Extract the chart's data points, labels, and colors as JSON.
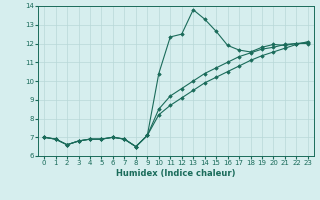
{
  "xlabel": "Humidex (Indice chaleur)",
  "ylabel": "",
  "x": [
    0,
    1,
    2,
    3,
    4,
    5,
    6,
    7,
    8,
    9,
    10,
    11,
    12,
    13,
    14,
    15,
    16,
    17,
    18,
    19,
    20,
    21,
    22,
    23
  ],
  "line1": [
    7.0,
    6.9,
    6.6,
    6.8,
    6.9,
    6.9,
    7.0,
    6.9,
    6.5,
    7.1,
    10.4,
    12.35,
    12.5,
    13.8,
    13.3,
    12.65,
    11.9,
    11.65,
    11.55,
    11.8,
    11.95,
    11.9,
    12.0,
    12.0
  ],
  "line2": [
    7.0,
    6.9,
    6.6,
    6.8,
    6.9,
    6.9,
    7.0,
    6.9,
    6.5,
    7.1,
    8.5,
    9.2,
    9.6,
    10.0,
    10.4,
    10.7,
    11.0,
    11.3,
    11.5,
    11.7,
    11.8,
    11.95,
    12.0,
    12.05
  ],
  "line3": [
    7.0,
    6.9,
    6.6,
    6.8,
    6.9,
    6.9,
    7.0,
    6.9,
    6.5,
    7.1,
    8.2,
    8.7,
    9.1,
    9.5,
    9.9,
    10.2,
    10.5,
    10.8,
    11.1,
    11.35,
    11.55,
    11.75,
    11.95,
    12.1
  ],
  "line_color": "#1a6b5a",
  "bg_color": "#d6eeee",
  "grid_color": "#b8d8d8",
  "ylim": [
    6,
    14
  ],
  "xlim": [
    -0.5,
    23.5
  ],
  "yticks": [
    6,
    7,
    8,
    9,
    10,
    11,
    12,
    13,
    14
  ],
  "xticks": [
    0,
    1,
    2,
    3,
    4,
    5,
    6,
    7,
    8,
    9,
    10,
    11,
    12,
    13,
    14,
    15,
    16,
    17,
    18,
    19,
    20,
    21,
    22,
    23
  ],
  "marker": "D",
  "markersize": 1.8,
  "linewidth": 0.8,
  "tick_fontsize": 5.0,
  "xlabel_fontsize": 6.0
}
